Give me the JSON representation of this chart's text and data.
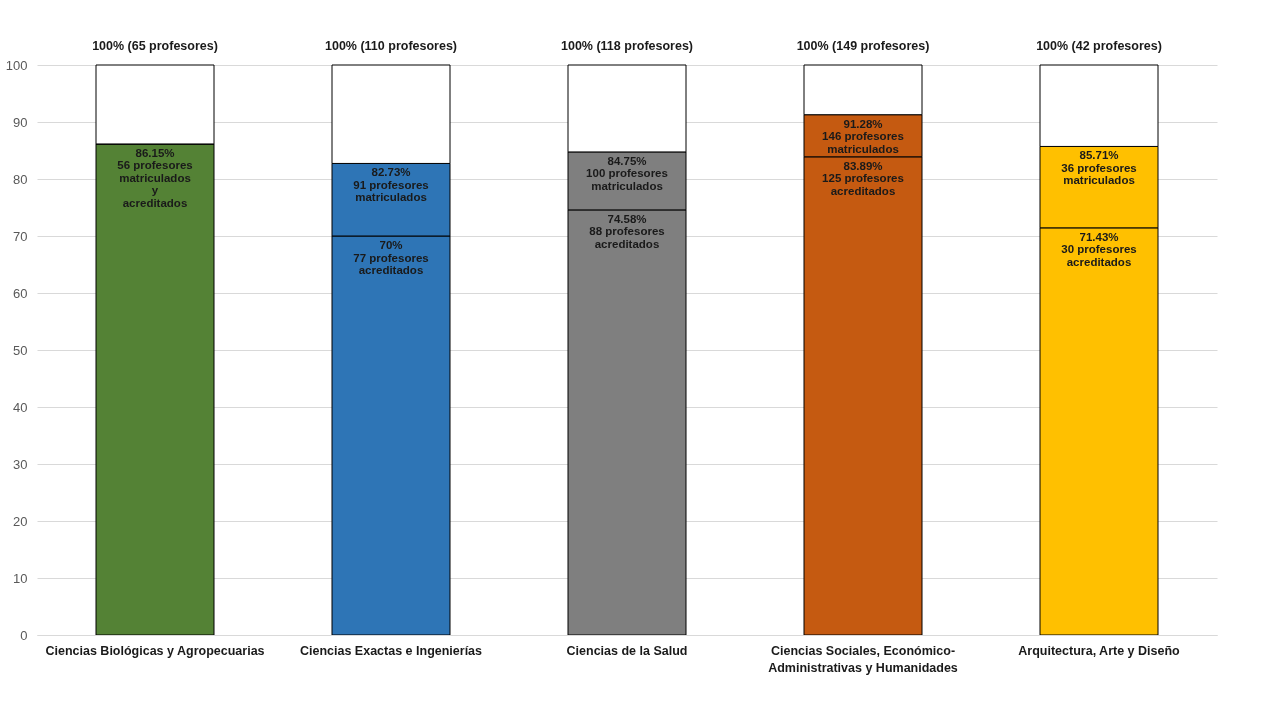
{
  "chart_data": {
    "type": "bar",
    "stacked": true,
    "categories": [
      "Ciencias Biológicas y Agropecuarias",
      "Ciencias Exactas e Ingenierías",
      "Ciencias de la Salud",
      "Ciencias Sociales, Económico-Administrativas y Humanidades",
      "Arquitectura, Arte y Diseño"
    ],
    "series": [
      {
        "colors": [
          "#548235",
          "#2e75b6",
          "#7f7f7f",
          "#c55a11",
          "#ffc000"
        ],
        "values": [
          86.15,
          70,
          74.58,
          83.89,
          71.43
        ]
      },
      {
        "colors": [
          "#548235",
          "#2e75b6",
          "#7f7f7f",
          "#c55a11",
          "#ffc000"
        ],
        "values": [
          0,
          12.73,
          10.17,
          7.39,
          14.28
        ]
      },
      {
        "colors": [
          "#ffffff",
          "#ffffff",
          "#ffffff",
          "#ffffff",
          "#ffffff"
        ],
        "values": [
          13.85,
          17.27,
          15.25,
          8.72,
          14.29
        ]
      }
    ],
    "totals": [
      "100% (65 profesores)",
      "100% (110 profesores)",
      "100% (118 profesores)",
      "100% (149 profesores)",
      "100% (42 profesores)"
    ],
    "annotations": [
      {
        "text": "86.15%\n56 profesores\nmatriculados\ny\nacreditados",
        "x": "Ciencias Biológicas y Agropecuarias",
        "y": 86.15
      },
      {
        "text": "82.73%\n91  profesores\nmatriculados",
        "x": "Ciencias Exactas e Ingenierías",
        "y": 82.73
      },
      {
        "text": "70%\n77 profesores\nacreditados",
        "x": "Ciencias Exactas e Ingenierías",
        "y": 70
      },
      {
        "text": "84.75%\n100 profesores\nmatriculados",
        "x": "Ciencias de la Salud",
        "y": 84.75
      },
      {
        "text": "74.58%\n88 profesores\nacreditados",
        "x": "Ciencias de la Salud",
        "y": 74.58
      },
      {
        "text": "91.28%\n146 profesores\nmatriculados",
        "x": "Ciencias Sociales, Económico-Administrativas y Humanidades",
        "y": 91.28
      },
      {
        "text": "83.89%\n125 profesores\nacreditados",
        "x": "Ciencias Sociales, Económico-Administrativas y Humanidades",
        "y": 83.89
      },
      {
        "text": "85.71%\n36 profesores\nmatriculados",
        "x": "Arquitectura, Arte y Diseño",
        "y": 85.71
      },
      {
        "text": "71.43%\n30 profesores\nacreditados",
        "x": "Arquitectura, Arte y Diseño",
        "y": 71.43
      }
    ],
    "ylim": [
      0,
      100
    ],
    "yticks": [
      0,
      10,
      20,
      30,
      40,
      50,
      60,
      70,
      80,
      90,
      100
    ],
    "grid": "y"
  }
}
